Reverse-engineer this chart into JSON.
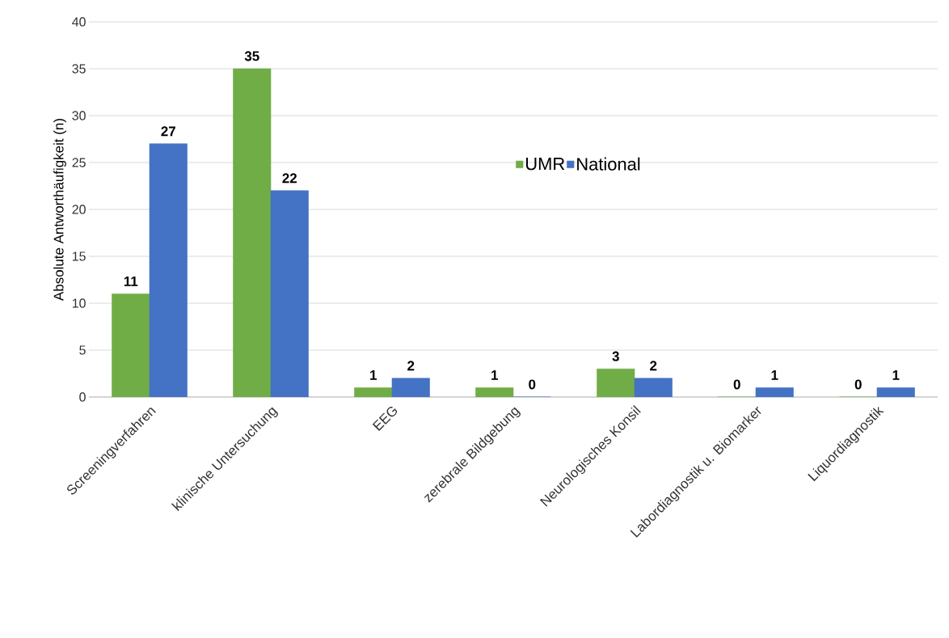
{
  "chart_data": {
    "type": "bar",
    "ylabel": "Absolute Antworthäufigkeit (n)",
    "categories": [
      "Screeningverfahren",
      "klinische Untersuchung",
      "EEG",
      "zerebrale Bildgebung",
      "Neurologisches Konsil",
      "Labordiagnostik u. Biomarker",
      "Liquordiagnostik"
    ],
    "series": [
      {
        "name": "UMR",
        "color": "#70ad47",
        "values": [
          11,
          35,
          1,
          1,
          3,
          0,
          0
        ]
      },
      {
        "name": "National",
        "color": "#4472c4",
        "values": [
          27,
          22,
          2,
          0,
          2,
          1,
          1
        ]
      }
    ],
    "ylim": [
      0,
      40
    ],
    "yticks": [
      0,
      5,
      10,
      15,
      20,
      25,
      30,
      35,
      40
    ],
    "grid": "y",
    "legend": "top",
    "data_labels": true
  }
}
